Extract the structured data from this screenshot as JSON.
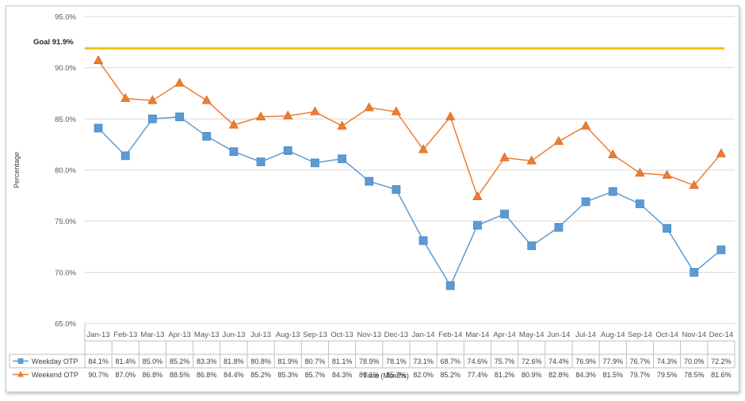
{
  "chart_data": {
    "type": "line",
    "xlabel": "Time (Months)",
    "ylabel": "Percentage",
    "ylim": [
      65,
      95
    ],
    "yticks": [
      "95.0%",
      "90.0%",
      "85.0%",
      "80.0%",
      "75.0%",
      "70.0%",
      "65.0%"
    ],
    "goal": {
      "label": "Goal 91.9%",
      "value": 91.9,
      "color": "#f2c200"
    },
    "categories": [
      "Jan-13",
      "Feb-13",
      "Mar-13",
      "Apr-13",
      "May-13",
      "Jun-13",
      "Jul-13",
      "Aug-13",
      "Sep-13",
      "Oct-13",
      "Nov-13",
      "Dec-13",
      "Jan-14",
      "Feb-14",
      "Mar-14",
      "Apr-14",
      "May-14",
      "Jun-14",
      "Jul-14",
      "Aug-14",
      "Sep-14",
      "Oct-14",
      "Nov-14",
      "Dec-14"
    ],
    "series": [
      {
        "name": "Weekday OTP",
        "color": "#5b9bd5",
        "marker": "square",
        "values": [
          84.1,
          81.4,
          85.0,
          85.2,
          83.3,
          81.8,
          80.8,
          81.9,
          80.7,
          81.1,
          78.9,
          78.1,
          73.1,
          68.7,
          74.6,
          75.7,
          72.6,
          74.4,
          76.9,
          77.9,
          76.7,
          74.3,
          70.0,
          72.2
        ],
        "labels": [
          "84.1%",
          "81.4%",
          "85.0%",
          "85.2%",
          "83.3%",
          "81.8%",
          "80.8%",
          "81.9%",
          "80.7%",
          "81.1%",
          "78.9%",
          "78.1%",
          "73.1%",
          "68.7%",
          "74.6%",
          "75.7%",
          "72.6%",
          "74.4%",
          "76.9%",
          "77.9%",
          "76.7%",
          "74.3%",
          "70.0%",
          "72.2%"
        ]
      },
      {
        "name": "Weekend OTP",
        "color": "#ed7d31",
        "marker": "triangle",
        "values": [
          90.7,
          87.0,
          86.8,
          88.5,
          86.8,
          84.4,
          85.2,
          85.3,
          85.7,
          84.3,
          86.1,
          85.7,
          82.0,
          85.2,
          77.4,
          81.2,
          80.9,
          82.8,
          84.3,
          81.5,
          79.7,
          79.5,
          78.5,
          81.6
        ],
        "labels": [
          "90.7%",
          "87.0%",
          "86.8%",
          "88.5%",
          "86.8%",
          "84.4%",
          "85.2%",
          "85.3%",
          "85.7%",
          "84.3%",
          "86.1%",
          "85.7%",
          "82.0%",
          "85.2%",
          "77.4%",
          "81.2%",
          "80.9%",
          "82.8%",
          "84.3%",
          "81.5%",
          "79.7%",
          "79.5%",
          "78.5%",
          "81.6%"
        ]
      }
    ],
    "grid": true,
    "legend": "data-table"
  }
}
